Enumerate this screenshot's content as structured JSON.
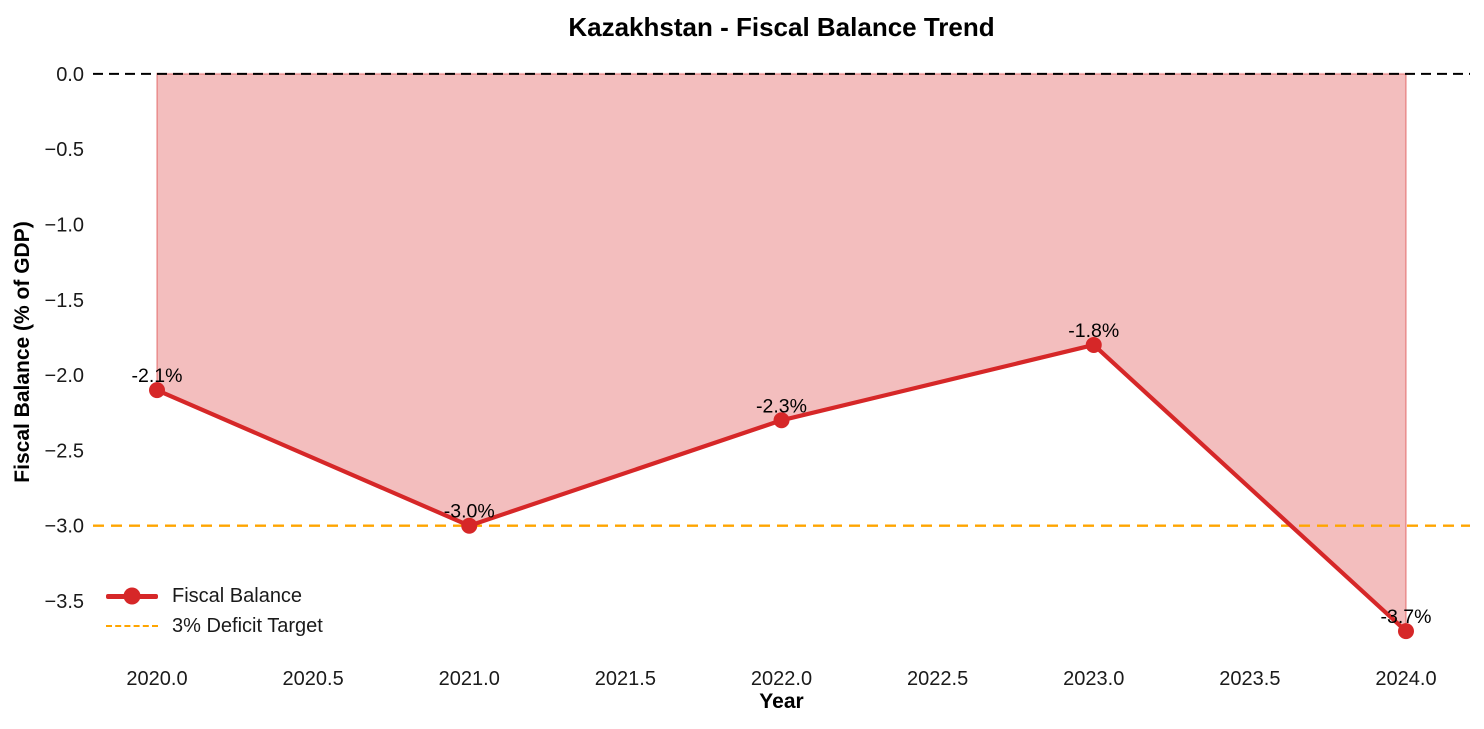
{
  "chart_data": {
    "type": "line",
    "title": "Kazakhstan - Fiscal Balance Trend",
    "xlabel": "Year",
    "ylabel": "Fiscal Balance (% of GDP)",
    "x": [
      2020,
      2021,
      2022,
      2023,
      2024
    ],
    "series": [
      {
        "name": "Fiscal Balance",
        "values": [
          -2.1,
          -3.0,
          -2.3,
          -1.8,
          -3.7
        ]
      }
    ],
    "point_labels": [
      "-2.1%",
      "-3.0%",
      "-2.3%",
      "-1.8%",
      "-3.7%"
    ],
    "x_ticks": {
      "values": [
        2020.0,
        2020.5,
        2021.0,
        2021.5,
        2022.0,
        2022.5,
        2023.0,
        2023.5,
        2024.0
      ],
      "labels": [
        "2020.0",
        "2020.5",
        "2021.0",
        "2021.5",
        "2022.0",
        "2022.5",
        "2023.0",
        "2023.5",
        "2024.0"
      ]
    },
    "y_ticks": {
      "values": [
        0.0,
        -0.5,
        -1.0,
        -1.5,
        -2.0,
        -2.5,
        -3.0,
        -3.5
      ],
      "labels": [
        "0.0",
        "−0.5",
        "−1.0",
        "−1.5",
        "−2.0",
        "−2.5",
        "−3.0",
        "−3.5"
      ]
    },
    "xlim": [
      2019.795,
      2024.205
    ],
    "ylim": [
      -3.885,
      0.185
    ],
    "grid": false,
    "reference_lines": [
      {
        "name": "zero-line",
        "value": 0.0,
        "color": "#000000",
        "style": "dashed"
      },
      {
        "name": "deficit-target-line",
        "value": -3.0,
        "color": "#FFA500",
        "style": "dashed"
      }
    ],
    "legend": {
      "position": "lower-left",
      "items": [
        {
          "label": "Fiscal Balance",
          "marker": "line-dot",
          "color": "#d62728"
        },
        {
          "label": "3% Deficit Target",
          "marker": "dashed-line",
          "color": "#FFA500"
        }
      ]
    },
    "colors": {
      "series": "#d62728",
      "fill": "#d62728",
      "fill_opacity": 0.3,
      "tick_text": "#1a1a1a",
      "point_label_text": "#000000"
    }
  }
}
